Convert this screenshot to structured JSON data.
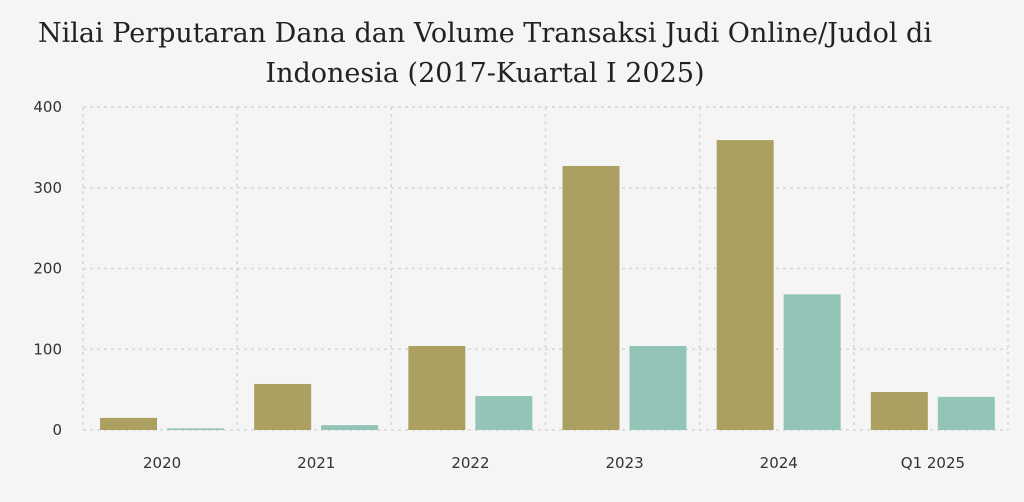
{
  "chart_data": {
    "type": "bar",
    "title": "Nilai Perputaran Dana dan Volume Transaksi Judi Online/Judol di Indonesia (2017-Kuartal I 2025)",
    "categories": [
      "2020",
      "2021",
      "2022",
      "2023",
      "2024",
      "Q1 2025"
    ],
    "series": [
      {
        "values": [
          15,
          57,
          104,
          327,
          359,
          47
        ],
        "color": "#aba061"
      },
      {
        "values": [
          2,
          6,
          42,
          104,
          168,
          41
        ],
        "color": "#92c5b7"
      }
    ],
    "ylim": [
      0,
      400
    ],
    "yticks": [
      0,
      100,
      200,
      300,
      400
    ],
    "grid": true,
    "xlabel": "",
    "ylabel": ""
  }
}
